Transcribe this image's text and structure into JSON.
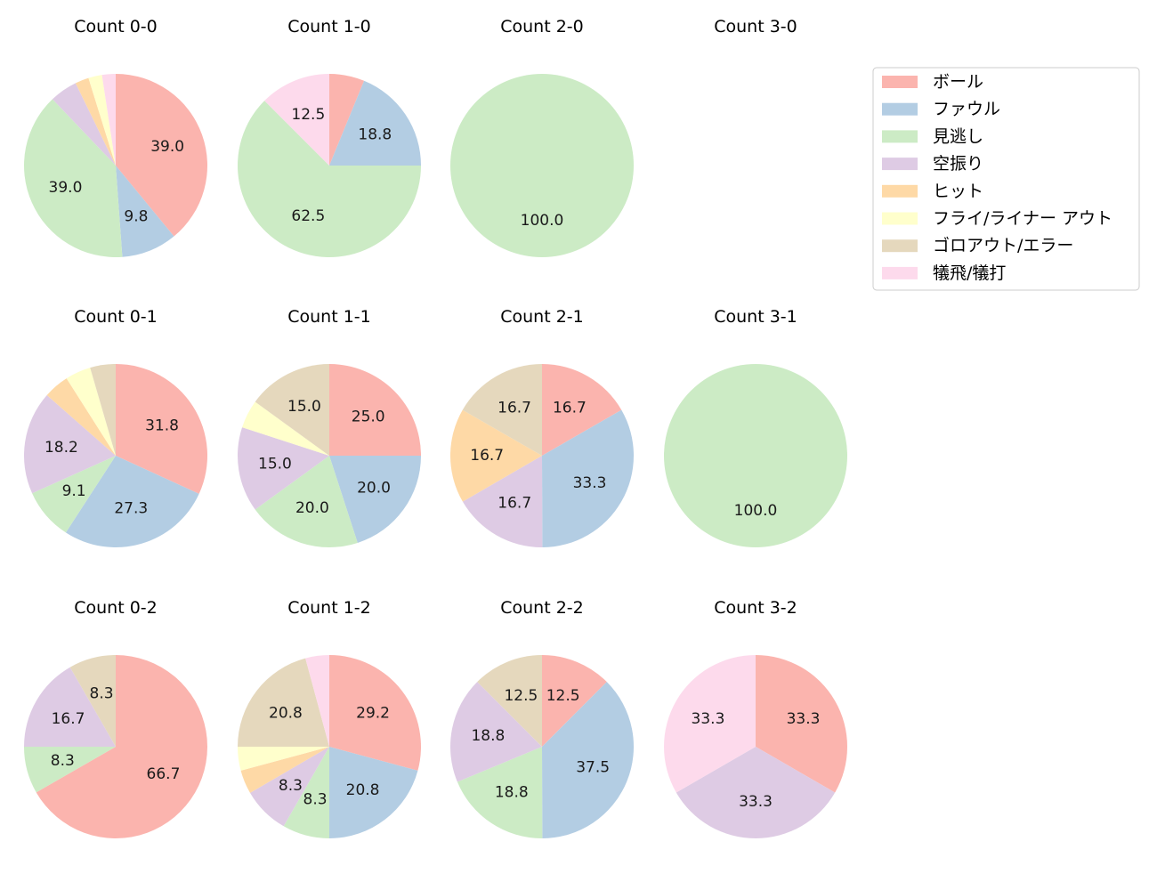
{
  "chart_data": {
    "type": "pie",
    "legend": {
      "placement": "top-right",
      "entries": [
        {
          "name": "ボール",
          "color": "#fbb4ae"
        },
        {
          "name": "ファウル",
          "color": "#b3cde3"
        },
        {
          "name": "見逃し",
          "color": "#ccebc5"
        },
        {
          "name": "空振り",
          "color": "#decbe4"
        },
        {
          "name": "ヒット",
          "color": "#fed9a6"
        },
        {
          "name": "フライ/ライナー アウト",
          "color": "#ffffcc"
        },
        {
          "name": "ゴロアウト/エラー",
          "color": "#e5d8bd"
        },
        {
          "name": "犠飛/犠打",
          "color": "#fddaec"
        }
      ]
    },
    "pies": [
      {
        "title": "Count 0-0",
        "values": [
          39.0,
          9.8,
          39.0,
          4.9,
          2.4,
          2.4,
          0,
          2.4
        ],
        "labels": [
          "39.0",
          "9.8",
          "39.0",
          "",
          "",
          "",
          "",
          ""
        ]
      },
      {
        "title": "Count 1-0",
        "values": [
          6.2,
          18.8,
          62.5,
          0,
          0,
          0,
          0,
          12.5
        ],
        "labels": [
          "",
          "18.8",
          "62.5",
          "",
          "",
          "",
          "",
          "12.5"
        ]
      },
      {
        "title": "Count 2-0",
        "values": [
          0,
          0,
          100.0,
          0,
          0,
          0,
          0,
          0
        ],
        "labels": [
          "",
          "",
          "100.0",
          "",
          "",
          "",
          "",
          ""
        ]
      },
      {
        "title": "Count 3-0",
        "values": [],
        "labels": []
      },
      {
        "title": "Count 0-1",
        "values": [
          31.8,
          27.3,
          9.1,
          18.2,
          4.5,
          4.5,
          4.5,
          0
        ],
        "labels": [
          "31.8",
          "27.3",
          "9.1",
          "18.2",
          "",
          "",
          "",
          ""
        ]
      },
      {
        "title": "Count 1-1",
        "values": [
          25.0,
          20.0,
          20.0,
          15.0,
          0,
          5.0,
          15.0,
          0
        ],
        "labels": [
          "25.0",
          "20.0",
          "20.0",
          "15.0",
          "",
          "",
          "15.0",
          ""
        ]
      },
      {
        "title": "Count 2-1",
        "values": [
          16.7,
          33.3,
          0,
          16.7,
          16.7,
          0,
          16.7,
          0
        ],
        "labels": [
          "16.7",
          "33.3",
          "",
          "16.7",
          "16.7",
          "",
          "16.7",
          ""
        ]
      },
      {
        "title": "Count 3-1",
        "values": [
          0,
          0,
          100.0,
          0,
          0,
          0,
          0,
          0
        ],
        "labels": [
          "",
          "",
          "100.0",
          "",
          "",
          "",
          "",
          ""
        ]
      },
      {
        "title": "Count 0-2",
        "values": [
          66.7,
          0,
          8.3,
          16.7,
          0,
          0,
          8.3,
          0
        ],
        "labels": [
          "66.7",
          "",
          "8.3",
          "16.7",
          "",
          "",
          "8.3",
          ""
        ]
      },
      {
        "title": "Count 1-2",
        "values": [
          29.2,
          20.8,
          8.3,
          8.3,
          4.2,
          4.2,
          20.8,
          4.2
        ],
        "labels": [
          "29.2",
          "20.8",
          "8.3",
          "8.3",
          "",
          "",
          "20.8",
          ""
        ]
      },
      {
        "title": "Count 2-2",
        "values": [
          12.5,
          37.5,
          18.8,
          18.8,
          0,
          0,
          12.5,
          0
        ],
        "labels": [
          "12.5",
          "37.5",
          "18.8",
          "18.8",
          "",
          "",
          "12.5",
          ""
        ]
      },
      {
        "title": "Count 3-2",
        "values": [
          33.3,
          0,
          0,
          33.3,
          0,
          0,
          0,
          33.3
        ],
        "labels": [
          "33.3",
          "",
          "",
          "33.3",
          "",
          "",
          "",
          "33.3"
        ]
      }
    ]
  }
}
